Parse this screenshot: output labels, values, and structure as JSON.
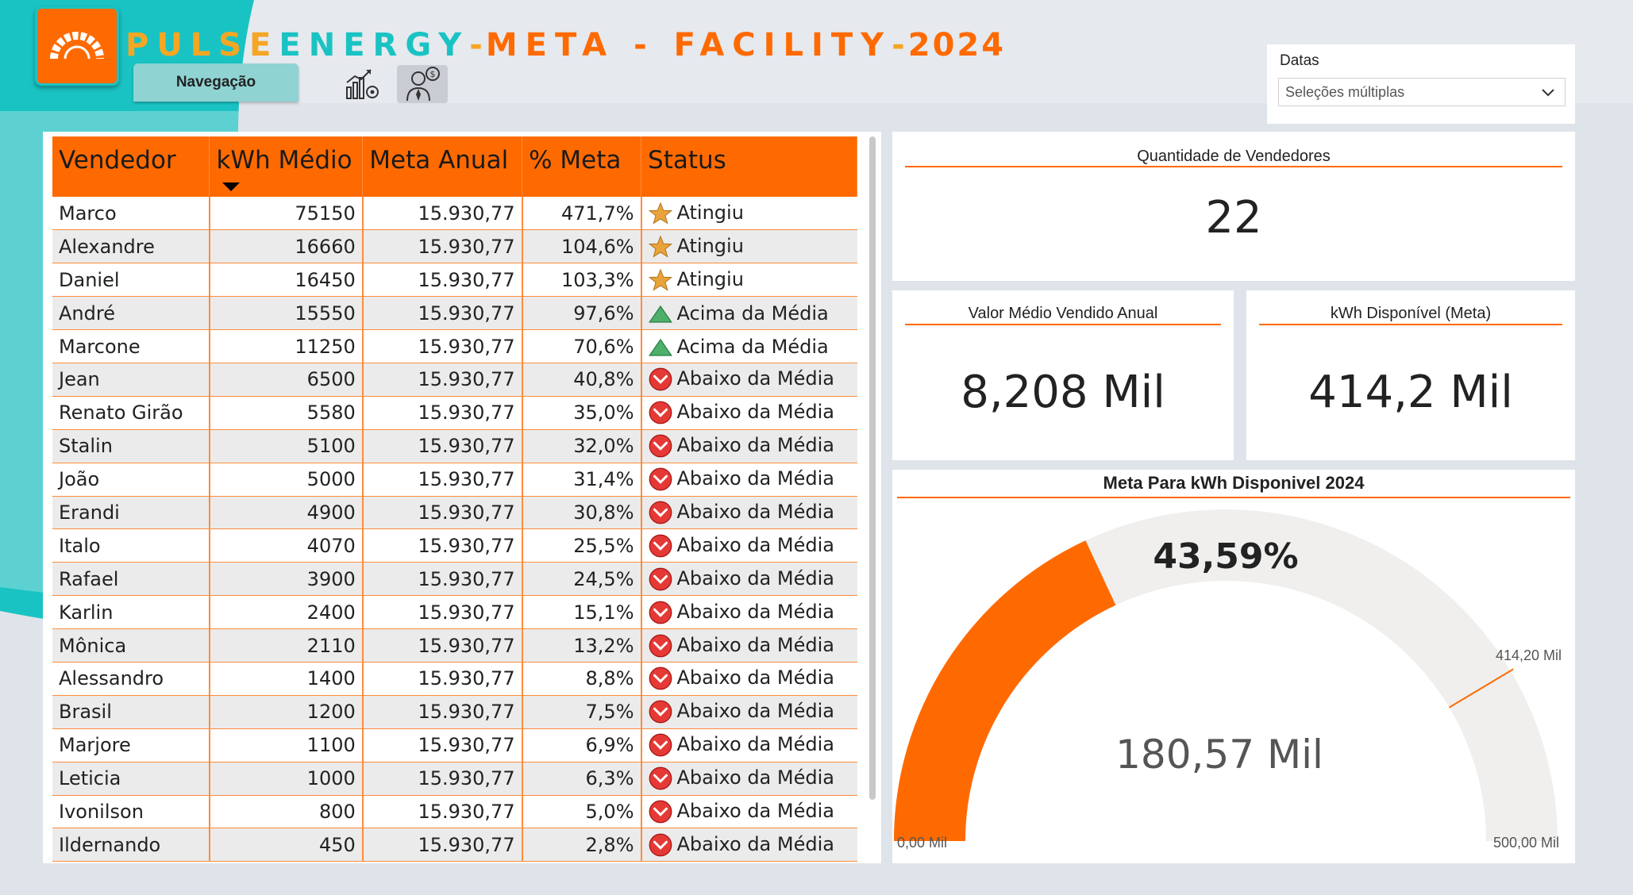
{
  "header": {
    "title_part1": "PULSE",
    "title_part2": "ENERGY",
    "title_sep1": "-",
    "title_part3": "META - FACILITY",
    "title_sep2": "-",
    "title_year": "2024",
    "nav_label": "Navegação",
    "icons": [
      "chart-gear-icon",
      "businessman-money-icon"
    ],
    "logo_icon": "gauge-logo-icon"
  },
  "filter": {
    "label": "Datas",
    "value": "Seleções múltiplas",
    "icon": "chevron-down-icon"
  },
  "table": {
    "columns": [
      "Vendedor",
      "kWh Médio",
      "Meta Anual",
      "% Meta",
      "Status"
    ],
    "sorted_column": "kWh Médio",
    "rows": [
      {
        "vendedor": "Marco",
        "kwh": "75150",
        "meta": "15.930,77",
        "pct": "471,7%",
        "status": "Atingiu",
        "icon": "star"
      },
      {
        "vendedor": "Alexandre",
        "kwh": "16660",
        "meta": "15.930,77",
        "pct": "104,6%",
        "status": "Atingiu",
        "icon": "star"
      },
      {
        "vendedor": "Daniel",
        "kwh": "16450",
        "meta": "15.930,77",
        "pct": "103,3%",
        "status": "Atingiu",
        "icon": "star"
      },
      {
        "vendedor": "André",
        "kwh": "15550",
        "meta": "15.930,77",
        "pct": "97,6%",
        "status": "Acima da Média",
        "icon": "triangle"
      },
      {
        "vendedor": "Marcone",
        "kwh": "11250",
        "meta": "15.930,77",
        "pct": "70,6%",
        "status": "Acima da Média",
        "icon": "triangle"
      },
      {
        "vendedor": "Jean",
        "kwh": "6500",
        "meta": "15.930,77",
        "pct": "40,8%",
        "status": "Abaixo da Média",
        "icon": "down"
      },
      {
        "vendedor": "Renato Girão",
        "kwh": "5580",
        "meta": "15.930,77",
        "pct": "35,0%",
        "status": "Abaixo da Média",
        "icon": "down"
      },
      {
        "vendedor": "Stalin",
        "kwh": "5100",
        "meta": "15.930,77",
        "pct": "32,0%",
        "status": "Abaixo da Média",
        "icon": "down"
      },
      {
        "vendedor": "João",
        "kwh": "5000",
        "meta": "15.930,77",
        "pct": "31,4%",
        "status": "Abaixo da Média",
        "icon": "down"
      },
      {
        "vendedor": "Erandi",
        "kwh": "4900",
        "meta": "15.930,77",
        "pct": "30,8%",
        "status": "Abaixo da Média",
        "icon": "down"
      },
      {
        "vendedor": "Italo",
        "kwh": "4070",
        "meta": "15.930,77",
        "pct": "25,5%",
        "status": "Abaixo da Média",
        "icon": "down"
      },
      {
        "vendedor": "Rafael",
        "kwh": "3900",
        "meta": "15.930,77",
        "pct": "24,5%",
        "status": "Abaixo da Média",
        "icon": "down"
      },
      {
        "vendedor": "Karlin",
        "kwh": "2400",
        "meta": "15.930,77",
        "pct": "15,1%",
        "status": "Abaixo da Média",
        "icon": "down"
      },
      {
        "vendedor": "Mônica",
        "kwh": "2110",
        "meta": "15.930,77",
        "pct": "13,2%",
        "status": "Abaixo da Média",
        "icon": "down"
      },
      {
        "vendedor": "Alessandro",
        "kwh": "1400",
        "meta": "15.930,77",
        "pct": "8,8%",
        "status": "Abaixo da Média",
        "icon": "down"
      },
      {
        "vendedor": "Brasil",
        "kwh": "1200",
        "meta": "15.930,77",
        "pct": "7,5%",
        "status": "Abaixo da Média",
        "icon": "down"
      },
      {
        "vendedor": "Marjore",
        "kwh": "1100",
        "meta": "15.930,77",
        "pct": "6,9%",
        "status": "Abaixo da Média",
        "icon": "down"
      },
      {
        "vendedor": "Leticia",
        "kwh": "1000",
        "meta": "15.930,77",
        "pct": "6,3%",
        "status": "Abaixo da Média",
        "icon": "down"
      },
      {
        "vendedor": "Ivonilson",
        "kwh": "800",
        "meta": "15.930,77",
        "pct": "5,0%",
        "status": "Abaixo da Média",
        "icon": "down"
      },
      {
        "vendedor": "Ildernando",
        "kwh": "450",
        "meta": "15.930,77",
        "pct": "2,8%",
        "status": "Abaixo da Média",
        "icon": "down"
      }
    ]
  },
  "kpis": {
    "vendedores": {
      "title": "Quantidade de Vendedores",
      "value": "22"
    },
    "valor_medio": {
      "title": "Valor Médio Vendido Anual",
      "value": "8,208 Mil"
    },
    "kwh_disponivel": {
      "title": "kWh Disponível (Meta)",
      "value": "414,2 Mil"
    }
  },
  "gauge": {
    "title": "Meta Para kWh Disponivel 2024",
    "percent_label": "43,59%",
    "value_label": "180,57 Mil",
    "min_label": "0,00 Mil",
    "max_label": "500,00 Mil",
    "target_label": "414,20 Mil",
    "value": 180.57,
    "min": 0,
    "max": 500,
    "target": 414.2
  },
  "colors": {
    "accent": "#ff6a00",
    "teal": "#1ac3c3",
    "gold": "#f5a623",
    "star": "#e8a33a",
    "triangle": "#4caf6a",
    "down": "#e53935"
  }
}
